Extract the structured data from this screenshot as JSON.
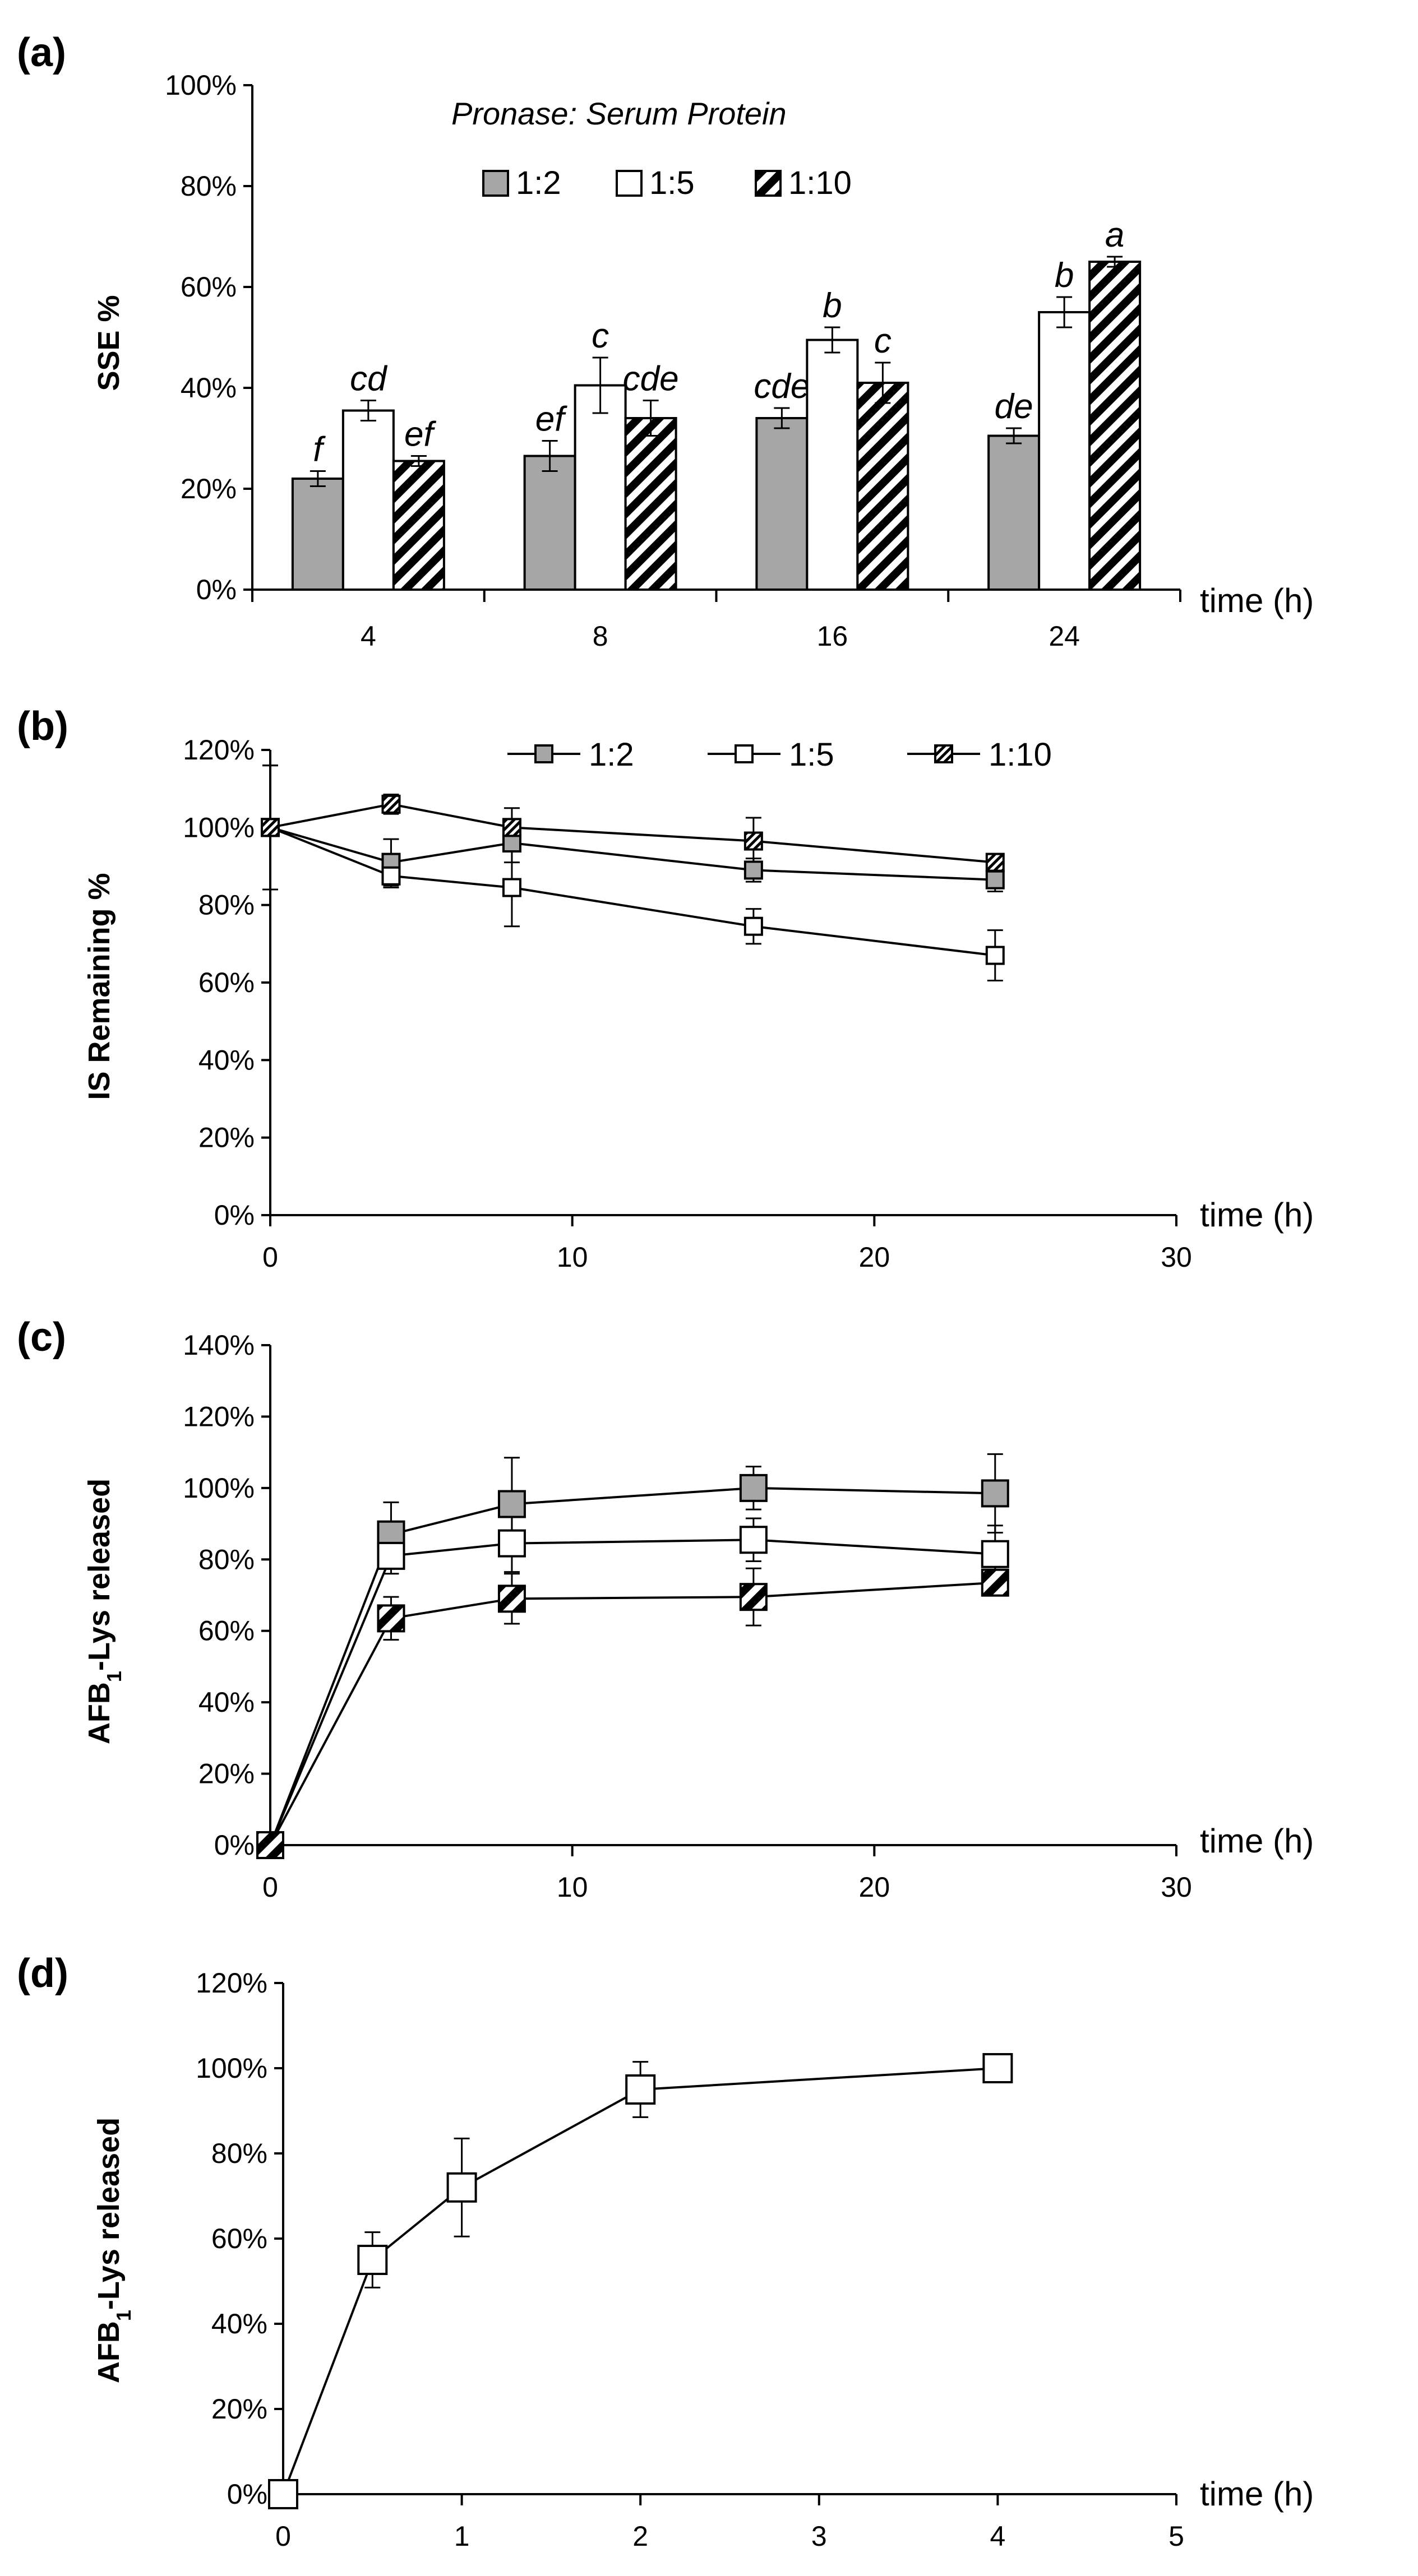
{
  "chart_data": [
    {
      "id": "a",
      "panel_label": "(a)",
      "type": "bar",
      "title": "",
      "xlabel": "time (h)",
      "ylabel": "SSE %",
      "ylim": [
        0,
        100
      ],
      "y_ticks": [
        "0%",
        "20%",
        "40%",
        "60%",
        "80%",
        "100%"
      ],
      "y_tick_values": [
        0,
        20,
        40,
        60,
        80,
        100
      ],
      "categories": [
        "4",
        "8",
        "16",
        "24"
      ],
      "legend_title": "Pronase: Serum Protein",
      "legend_position": "top-center",
      "series": [
        {
          "name": "1:2",
          "fill": "#a6a6a6",
          "values": [
            22,
            26.5,
            34,
            30.5
          ],
          "errors": [
            1.5,
            3,
            2,
            1.5
          ],
          "letters": [
            "f",
            "ef",
            "cde",
            "de"
          ]
        },
        {
          "name": "1:5",
          "fill": "#ffffff",
          "values": [
            35.5,
            40.5,
            49.5,
            55
          ],
          "errors": [
            2,
            5.5,
            2.5,
            3
          ],
          "letters": [
            "cd",
            "c",
            "b",
            "b"
          ]
        },
        {
          "name": "1:10",
          "fill": "hatch",
          "values": [
            25.5,
            34,
            41,
            65
          ],
          "errors": [
            1,
            3.5,
            4,
            1
          ],
          "letters": [
            "ef",
            "cde",
            "c",
            "a"
          ]
        }
      ]
    },
    {
      "id": "b",
      "panel_label": "(b)",
      "type": "line",
      "xlabel": "time (h)",
      "ylabel": "IS Remaining %",
      "xlim": [
        0,
        30
      ],
      "ylim": [
        0,
        120
      ],
      "x_ticks": [
        "0",
        "10",
        "20",
        "30"
      ],
      "x_tick_values": [
        0,
        10,
        20,
        30
      ],
      "y_ticks": [
        "0%",
        "20%",
        "40%",
        "60%",
        "80%",
        "100%",
        "120%"
      ],
      "y_tick_values": [
        0,
        20,
        40,
        60,
        80,
        100,
        120
      ],
      "x": [
        0,
        4,
        8,
        16,
        24
      ],
      "legend_position": "top-right",
      "series": [
        {
          "name": "1:2",
          "marker": "gray",
          "values": [
            100,
            91,
            96,
            89,
            86.5
          ],
          "errors": [
            16,
            6,
            5,
            3,
            3
          ]
        },
        {
          "name": "1:5",
          "marker": "white",
          "values": [
            100,
            87.5,
            84.5,
            74.5,
            67
          ],
          "errors": [
            16,
            3,
            10,
            4.5,
            6.5
          ]
        },
        {
          "name": "1:10",
          "marker": "hatch",
          "values": [
            100,
            106,
            100,
            96.5,
            91
          ],
          "errors": [
            16,
            2.5,
            5,
            6,
            1
          ]
        }
      ]
    },
    {
      "id": "c",
      "panel_label": "(c)",
      "type": "line",
      "xlabel": "time (h)",
      "ylabel_main": "AFB",
      "ylabel_sub": "1",
      "ylabel_rest": "-Lys released",
      "xlim": [
        0,
        30
      ],
      "ylim": [
        0,
        140
      ],
      "x_ticks": [
        "0",
        "10",
        "20",
        "30"
      ],
      "x_tick_values": [
        0,
        10,
        20,
        30
      ],
      "y_ticks": [
        "0%",
        "20%",
        "40%",
        "60%",
        "80%",
        "100%",
        "120%",
        "140%"
      ],
      "y_tick_values": [
        0,
        20,
        40,
        60,
        80,
        100,
        120,
        140
      ],
      "x": [
        0,
        4,
        8,
        16,
        24
      ],
      "series": [
        {
          "name": "1:2",
          "marker": "gray",
          "values": [
            0,
            87,
            95.5,
            100,
            98.5
          ],
          "errors": [
            0,
            9,
            13,
            6,
            11
          ]
        },
        {
          "name": "1:5",
          "marker": "white",
          "values": [
            0,
            81,
            84.5,
            85.5,
            81.5
          ],
          "errors": [
            0,
            5,
            8,
            6,
            8
          ]
        },
        {
          "name": "1:10",
          "marker": "hatch",
          "values": [
            0,
            63.5,
            69,
            69.5,
            73.5
          ],
          "errors": [
            0,
            6,
            7,
            8,
            1.5
          ]
        }
      ]
    },
    {
      "id": "d",
      "panel_label": "(d)",
      "type": "line",
      "xlabel": "time (h)",
      "ylabel_main": "AFB",
      "ylabel_sub": "1",
      "ylabel_rest": "-Lys released",
      "xlim": [
        0,
        5
      ],
      "ylim": [
        0,
        120
      ],
      "x_ticks": [
        "0",
        "1",
        "2",
        "3",
        "4",
        "5"
      ],
      "x_tick_values": [
        0,
        1,
        2,
        3,
        4,
        5
      ],
      "y_ticks": [
        "0%",
        "20%",
        "40%",
        "60%",
        "80%",
        "100%",
        "120%"
      ],
      "y_tick_values": [
        0,
        20,
        40,
        60,
        80,
        100,
        120
      ],
      "x": [
        0,
        0.5,
        1,
        2,
        4
      ],
      "series": [
        {
          "name": "AFB1-Lys",
          "marker": "white",
          "values": [
            0,
            55,
            72,
            95,
            100
          ],
          "errors": [
            0,
            6.5,
            11.5,
            6.5,
            0
          ]
        }
      ]
    }
  ]
}
